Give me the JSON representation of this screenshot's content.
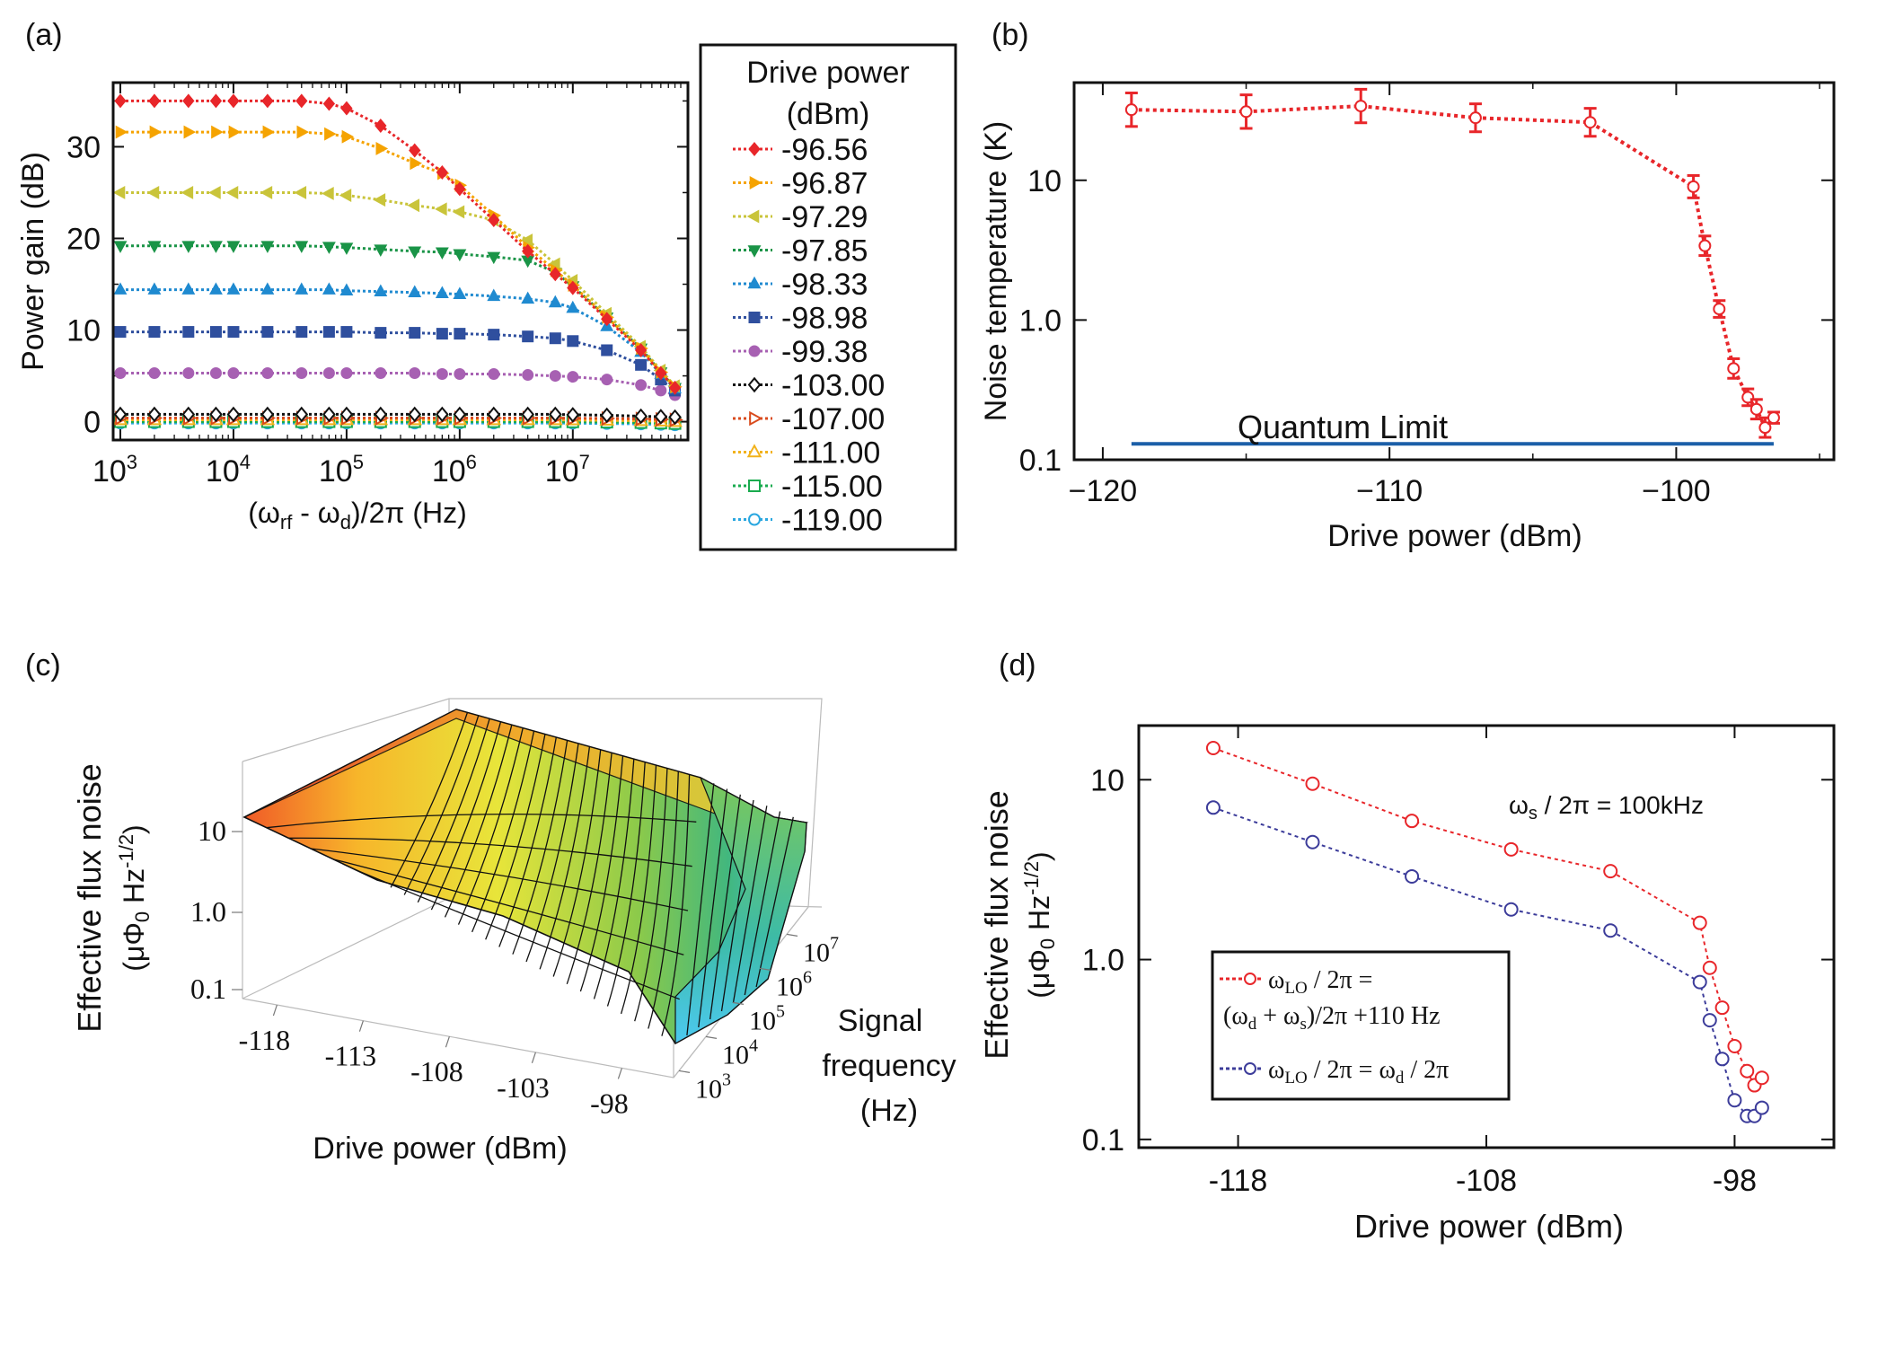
{
  "panels": {
    "a": "(a)",
    "b": "(b)",
    "c": "(c)",
    "d": "(d)"
  },
  "colors": {
    "red": "#e8262a",
    "orange": "#f5a300",
    "olive": "#c9c43a",
    "green": "#1a9447",
    "blue": "#1f8ad0",
    "navy": "#2f4f9e",
    "purple": "#a760b2",
    "black": "#111111",
    "darkred": "#d94a1c",
    "gold": "#f2b21b",
    "lgreen": "#1aab4f",
    "cyan": "#2aa7e0",
    "ql": "#1b5fa8",
    "dblue": "#3c3c9a"
  },
  "chart_data": [
    {
      "panel": "a",
      "type": "line",
      "title": "",
      "xlabel": "(ω_rf - ω_d)/2π (Hz)",
      "ylabel": "Power gain (dB)",
      "xscale": "log",
      "xlim": [
        1000,
        90000000
      ],
      "ylim": [
        -2,
        37
      ],
      "xtick_labels": [
        {
          "base": "10",
          "exp": "3"
        },
        {
          "base": "10",
          "exp": "4"
        },
        {
          "base": "10",
          "exp": "5"
        },
        {
          "base": "10",
          "exp": "6"
        },
        {
          "base": "10",
          "exp": "7"
        }
      ],
      "xtick_values": [
        1000,
        10000,
        100000,
        1000000,
        10000000
      ],
      "ytick_values": [
        0,
        10,
        20,
        30
      ],
      "ytick_labels": [
        "0",
        "10",
        "20",
        "30"
      ],
      "x": [
        1000,
        2000,
        4000,
        7000,
        10000,
        20000,
        40000,
        70000,
        100000,
        200000,
        400000,
        700000,
        1000000,
        2000000,
        4000000,
        7000000,
        10000000,
        20000000,
        40000000,
        60000000,
        80000000
      ],
      "legend": {
        "title_line1": "Drive power",
        "title_line2": "(dBm)",
        "placement": "outside-right"
      },
      "series": [
        {
          "name": "-96.56",
          "color": "red",
          "marker": "diamond",
          "values": [
            35,
            35,
            35,
            35,
            35,
            35,
            35,
            34.7,
            34.2,
            32.3,
            29.6,
            27.2,
            25.4,
            22,
            18.6,
            16.1,
            14.6,
            11.2,
            7.8,
            5.3,
            3.7
          ]
        },
        {
          "name": "-96.87",
          "color": "orange",
          "marker": "tri-right",
          "values": [
            31.6,
            31.6,
            31.6,
            31.6,
            31.6,
            31.6,
            31.6,
            31.4,
            31.1,
            29.8,
            28.2,
            27.1,
            25.8,
            22.5,
            19,
            16.5,
            14.9,
            11.4,
            8,
            5.4,
            3.8
          ]
        },
        {
          "name": "-97.29",
          "color": "olive",
          "marker": "tri-left",
          "values": [
            25,
            25,
            25,
            25,
            25,
            25,
            25,
            24.9,
            24.7,
            24.2,
            23.6,
            23.2,
            22.9,
            22,
            19.8,
            17.2,
            15.4,
            11.8,
            8.2,
            5.6,
            3.9
          ]
        },
        {
          "name": "-97.85",
          "color": "green",
          "marker": "tri-down",
          "values": [
            19.2,
            19.2,
            19.2,
            19.2,
            19.2,
            19.2,
            19.2,
            19.1,
            19,
            18.8,
            18.6,
            18.5,
            18.3,
            18,
            17.6,
            16.3,
            14.8,
            11.4,
            8,
            5.4,
            3.7
          ]
        },
        {
          "name": "-98.33",
          "color": "blue",
          "marker": "tri-up",
          "values": [
            14.4,
            14.4,
            14.4,
            14.4,
            14.4,
            14.4,
            14.4,
            14.4,
            14.3,
            14.2,
            14.1,
            14,
            13.9,
            13.7,
            13.4,
            13,
            12.4,
            10.4,
            7.6,
            5.2,
            3.6
          ]
        },
        {
          "name": "-98.98",
          "color": "navy",
          "marker": "square",
          "values": [
            9.8,
            9.8,
            9.8,
            9.8,
            9.8,
            9.8,
            9.8,
            9.8,
            9.8,
            9.7,
            9.7,
            9.6,
            9.6,
            9.5,
            9.3,
            9.1,
            8.8,
            7.8,
            6.2,
            4.6,
            3.4
          ]
        },
        {
          "name": "-99.38",
          "color": "purple",
          "marker": "circle",
          "values": [
            5.3,
            5.3,
            5.3,
            5.3,
            5.3,
            5.3,
            5.3,
            5.3,
            5.3,
            5.3,
            5.3,
            5.2,
            5.2,
            5.2,
            5.1,
            5,
            4.9,
            4.6,
            4,
            3.4,
            2.9
          ]
        },
        {
          "name": "-103.00",
          "color": "black",
          "marker": "open-diamond",
          "values": [
            0.8,
            0.8,
            0.8,
            0.8,
            0.8,
            0.8,
            0.8,
            0.8,
            0.8,
            0.8,
            0.8,
            0.8,
            0.8,
            0.8,
            0.8,
            0.8,
            0.75,
            0.7,
            0.6,
            0.55,
            0.5
          ]
        },
        {
          "name": "-107.00",
          "color": "darkred",
          "marker": "open-tri-right",
          "values": [
            0.4,
            0.4,
            0.4,
            0.4,
            0.4,
            0.4,
            0.4,
            0.4,
            0.4,
            0.4,
            0.4,
            0.4,
            0.4,
            0.4,
            0.4,
            0.4,
            0.38,
            0.35,
            0.3,
            0.25,
            0.2
          ]
        },
        {
          "name": "-111.00",
          "color": "gold",
          "marker": "open-tri-up",
          "values": [
            0.2,
            0.2,
            0.2,
            0.2,
            0.2,
            0.2,
            0.2,
            0.2,
            0.2,
            0.2,
            0.2,
            0.2,
            0.2,
            0.2,
            0.2,
            0.2,
            0.18,
            0.15,
            0.1,
            0.05,
            0
          ]
        },
        {
          "name": "-115.00",
          "color": "lgreen",
          "marker": "open-square",
          "values": [
            0,
            0,
            0,
            0,
            0,
            0,
            0,
            0,
            0,
            0,
            0,
            0,
            0,
            0,
            0,
            0,
            -0.02,
            -0.05,
            -0.1,
            -0.15,
            -0.2
          ]
        },
        {
          "name": "-119.00",
          "color": "cyan",
          "marker": "open-circle",
          "values": [
            -0.15,
            -0.15,
            -0.15,
            -0.15,
            -0.15,
            -0.15,
            -0.15,
            -0.15,
            -0.15,
            -0.15,
            -0.15,
            -0.15,
            -0.15,
            -0.15,
            -0.15,
            -0.15,
            -0.17,
            -0.2,
            -0.25,
            -0.3,
            -0.35
          ]
        }
      ]
    },
    {
      "panel": "b",
      "type": "line",
      "title": "",
      "xlabel": "Drive power (dBm)",
      "ylabel": "Noise temperature (K)",
      "yscale": "log",
      "xlim": [
        -121,
        -94.5
      ],
      "ylim": [
        0.1,
        50
      ],
      "xtick_values": [
        -120,
        -110,
        -100
      ],
      "xtick_labels": [
        "−120",
        "−110",
        "−100"
      ],
      "ytick_values": [
        0.1,
        1,
        10
      ],
      "ytick_labels": [
        "0.1",
        "1.0",
        "10"
      ],
      "series": [
        {
          "name": "Noise temperature",
          "color": "red",
          "marker": "open-circle",
          "x": [
            -119,
            -115,
            -111,
            -107,
            -103,
            -99.4,
            -99,
            -98.5,
            -98,
            -97.5,
            -97.2,
            -96.9,
            -96.6
          ],
          "y": [
            32,
            31,
            34,
            28,
            26,
            9,
            3.4,
            1.2,
            0.45,
            0.28,
            0.23,
            0.17,
            0.2
          ],
          "yerr": [
            0.12,
            0.12,
            0.12,
            0.1,
            0.1,
            0.08,
            0.07,
            0.06,
            0.07,
            0.06,
            0.07,
            0.07,
            0.04
          ]
        }
      ],
      "quantum_limit": {
        "label": "Quantum Limit",
        "value": 0.13,
        "x_from": -119,
        "x_to": -96.6,
        "color": "ql"
      }
    },
    {
      "panel": "c",
      "type": "surface",
      "title": "",
      "xlabel": "Drive power (dBm)",
      "ylabel_line1": "Effective flux noise",
      "ylabel_line2": "(μΦ₀ Hz^-1/2)",
      "zlabel_line1": "Signal",
      "zlabel_line2": "frequency",
      "zlabel_line3": "(Hz)",
      "drive_power_ticks": [
        "-118",
        "-113",
        "-108",
        "-103",
        "-98"
      ],
      "noise_ticks": [
        "10",
        "1.0",
        "0.1"
      ],
      "frequency_ticks": [
        {
          "base": "10",
          "exp": "3"
        },
        {
          "base": "10",
          "exp": "4"
        },
        {
          "base": "10",
          "exp": "5"
        },
        {
          "base": "10",
          "exp": "6"
        },
        {
          "base": "10",
          "exp": "7"
        }
      ]
    },
    {
      "panel": "d",
      "type": "line",
      "title": "",
      "xlabel": "Drive power (dBm)",
      "ylabel_line1": "Effective flux noise",
      "ylabel_line2": "(μΦ₀ Hz^-1/2)",
      "yscale": "log",
      "xlim": [
        -122,
        -94
      ],
      "ylim": [
        0.09,
        20
      ],
      "xtick_values": [
        -118,
        -108,
        -98
      ],
      "xtick_labels": [
        "-118",
        "-108",
        "-98"
      ],
      "ytick_values": [
        0.1,
        1,
        10
      ],
      "ytick_labels": [
        "0.1",
        "1.0",
        "10"
      ],
      "annotation": "ω_s / 2π = 100kHz",
      "series": [
        {
          "name": "ω_LO / 2π = (ω_d + ω_s)/2π +110 Hz",
          "color": "red",
          "marker": "open-circle",
          "x": [
            -119,
            -115,
            -111,
            -107,
            -103,
            -99.4,
            -99,
            -98.5,
            -98,
            -97.5,
            -97.2,
            -96.9
          ],
          "y": [
            15,
            9.5,
            5.9,
            4.1,
            3.1,
            1.6,
            0.9,
            0.54,
            0.33,
            0.24,
            0.2,
            0.22
          ]
        },
        {
          "name": "ω_LO / 2π = ω_d / 2π",
          "color": "dblue",
          "marker": "open-circle",
          "x": [
            -119,
            -115,
            -111,
            -107,
            -103,
            -99.4,
            -99,
            -98.5,
            -98,
            -97.5,
            -97.2,
            -96.9
          ],
          "y": [
            7,
            4.5,
            2.9,
            1.9,
            1.45,
            0.75,
            0.46,
            0.28,
            0.165,
            0.135,
            0.135,
            0.15
          ]
        }
      ]
    }
  ]
}
